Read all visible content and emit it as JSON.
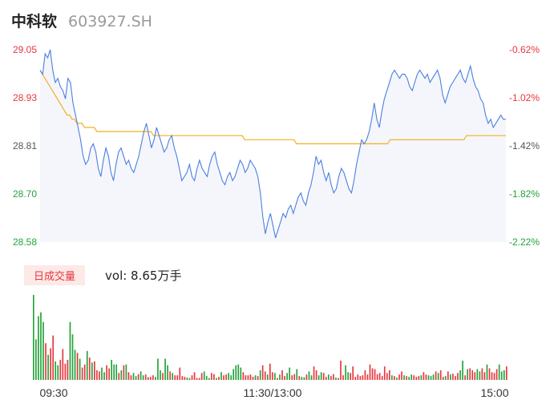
{
  "header": {
    "name": "中科软",
    "code": "603927.SH"
  },
  "volume": {
    "label": "日成交量",
    "text": "vol: 8.65万手"
  },
  "colors": {
    "price": "#4d7fe0",
    "avg": "#f2b01e",
    "up": "#e8363d",
    "down": "#23a33a",
    "area": "#f4f6fb"
  },
  "chart_data": [
    {
      "type": "line",
      "title": "",
      "y_left_ticks": [
        "29.05",
        "28.93",
        "28.81",
        "28.70",
        "28.58"
      ],
      "y_right_ticks": [
        "-0.62%",
        "-1.02%",
        "-1.42%",
        "-1.82%",
        "-2.22%"
      ],
      "ylim": [
        28.58,
        29.05
      ],
      "x_labels": [
        "09:30",
        "11:30/13:00",
        "15:00"
      ],
      "series": [
        {
          "values": [
            29.0,
            28.99,
            29.04,
            29.03,
            29.05,
            29.0,
            28.97,
            28.98,
            28.96,
            28.95,
            28.93,
            28.98,
            28.97,
            28.92,
            28.89,
            28.86,
            28.83,
            28.79,
            28.77,
            28.78,
            28.81,
            28.82,
            28.8,
            28.76,
            28.74,
            28.78,
            28.81,
            28.79,
            28.75,
            28.73,
            28.77,
            28.8,
            28.81,
            28.79,
            28.77,
            28.78,
            28.76,
            28.75,
            28.77,
            28.79,
            28.82,
            28.85,
            28.87,
            28.84,
            28.81,
            28.83,
            28.86,
            28.84,
            28.82,
            28.8,
            28.81,
            28.83,
            28.84,
            28.81,
            28.79,
            28.76,
            28.73,
            28.74,
            28.75,
            28.77,
            28.74,
            28.73,
            28.76,
            28.78,
            28.76,
            28.75,
            28.74,
            28.77,
            28.79,
            28.8,
            28.77,
            28.75,
            28.73,
            28.72,
            28.74,
            28.75,
            28.73,
            28.74,
            28.76,
            28.78,
            28.77,
            28.75,
            28.76,
            28.78,
            28.77,
            28.76,
            28.74,
            28.7,
            28.64,
            28.6,
            28.63,
            28.65,
            28.62,
            28.59,
            28.61,
            28.63,
            28.65,
            28.64,
            28.66,
            28.67,
            28.65,
            28.67,
            28.69,
            28.7,
            28.68,
            28.67,
            28.7,
            28.72,
            28.75,
            28.79,
            28.77,
            28.78,
            28.75,
            28.73,
            28.75,
            28.72,
            28.7,
            28.71,
            28.74,
            28.76,
            28.75,
            28.73,
            28.71,
            28.7,
            28.73,
            28.77,
            28.8,
            28.83,
            28.82,
            28.83,
            28.85,
            28.88,
            28.92,
            28.88,
            28.86,
            28.9,
            28.93,
            28.95,
            28.97,
            28.99,
            29.0,
            28.99,
            28.98,
            28.99,
            28.99,
            28.98,
            28.96,
            28.95,
            28.97,
            28.99,
            29.0,
            28.99,
            28.98,
            28.99,
            28.97,
            28.98,
            28.99,
            29.0,
            28.98,
            28.94,
            28.92,
            28.94,
            28.96,
            28.97,
            28.98,
            28.99,
            29.0,
            28.98,
            28.97,
            28.99,
            29.01,
            28.98,
            28.96,
            28.95,
            28.93,
            28.92,
            28.89,
            28.87,
            28.88,
            28.86,
            28.87,
            28.88,
            28.89,
            28.88,
            28.88
          ]
        },
        {
          "values": [
            29.0,
            28.99,
            28.98,
            28.97,
            28.96,
            28.95,
            28.94,
            28.93,
            28.92,
            28.91,
            28.9,
            28.89,
            28.89,
            28.88,
            28.88,
            28.87,
            28.87,
            28.87,
            28.86,
            28.86,
            28.86,
            28.86,
            28.86,
            28.85,
            28.85,
            28.85,
            28.85,
            28.85,
            28.85,
            28.85,
            28.85,
            28.85,
            28.85,
            28.85,
            28.85,
            28.85,
            28.85,
            28.85,
            28.85,
            28.85,
            28.85,
            28.85,
            28.85,
            28.85,
            28.85,
            28.85,
            28.84,
            28.84,
            28.84,
            28.84,
            28.84,
            28.84,
            28.84,
            28.84,
            28.84,
            28.84,
            28.84,
            28.84,
            28.84,
            28.84,
            28.84,
            28.84,
            28.84,
            28.84,
            28.84,
            28.84,
            28.84,
            28.84,
            28.84,
            28.84,
            28.84,
            28.84,
            28.84,
            28.84,
            28.84,
            28.84,
            28.84,
            28.84,
            28.84,
            28.84,
            28.84,
            28.84,
            28.84,
            28.83,
            28.83,
            28.83,
            28.83,
            28.83,
            28.83,
            28.83,
            28.83,
            28.83,
            28.83,
            28.83,
            28.83,
            28.83,
            28.83,
            28.83,
            28.83,
            28.83,
            28.83,
            28.83,
            28.83,
            28.83,
            28.82,
            28.82,
            28.82,
            28.82,
            28.82,
            28.82,
            28.82,
            28.82,
            28.82,
            28.82,
            28.82,
            28.82,
            28.82,
            28.82,
            28.82,
            28.82,
            28.82,
            28.82,
            28.82,
            28.82,
            28.82,
            28.82,
            28.82,
            28.82,
            28.82,
            28.82,
            28.82,
            28.82,
            28.82,
            28.82,
            28.82,
            28.82,
            28.82,
            28.82,
            28.82,
            28.82,
            28.82,
            28.82,
            28.83,
            28.83,
            28.83,
            28.83,
            28.83,
            28.83,
            28.83,
            28.83,
            28.83,
            28.83,
            28.83,
            28.83,
            28.83,
            28.83,
            28.83,
            28.83,
            28.83,
            28.83,
            28.83,
            28.83,
            28.83,
            28.83,
            28.83,
            28.83,
            28.83,
            28.83,
            28.83,
            28.83,
            28.83,
            28.83,
            28.83,
            28.84,
            28.84,
            28.84,
            28.84,
            28.84,
            28.84,
            28.84,
            28.84,
            28.84,
            28.84,
            28.84,
            28.84,
            28.84,
            28.84,
            28.84,
            28.84,
            28.84
          ]
        }
      ]
    },
    {
      "type": "bar",
      "title": "",
      "values": [
        220,
        105,
        165,
        175,
        150,
        95,
        65,
        82,
        115,
        48,
        38,
        52,
        80,
        42,
        52,
        150,
        118,
        78,
        70,
        55,
        32,
        40,
        75,
        58,
        45,
        48,
        25,
        22,
        32,
        20,
        38,
        30,
        52,
        40,
        40,
        18,
        25,
        38,
        40,
        20,
        12,
        18,
        10,
        15,
        22,
        12,
        14,
        7,
        8,
        12,
        8,
        55,
        25,
        18,
        55,
        38,
        22,
        18,
        12,
        12,
        32,
        10,
        8,
        6,
        5,
        12,
        20,
        5,
        5,
        18,
        22,
        10,
        5,
        18,
        15,
        5,
        8,
        20,
        12,
        14,
        18,
        12,
        28,
        38,
        40,
        32,
        20,
        12,
        12,
        14,
        8,
        12,
        10,
        25,
        38,
        22,
        14,
        42,
        20,
        18,
        5,
        14,
        25,
        10,
        18,
        32,
        12,
        15,
        28,
        10,
        8,
        7,
        14,
        22,
        12,
        35,
        25,
        12,
        20,
        18,
        8,
        14,
        10,
        15,
        6,
        5,
        50,
        12,
        38,
        20,
        18,
        35,
        8,
        14,
        10,
        12,
        25,
        14,
        40,
        30,
        28,
        15,
        18,
        10,
        35,
        18,
        25,
        12,
        10,
        6,
        14,
        22,
        12,
        10,
        8,
        14,
        12,
        8,
        10,
        12,
        20,
        14,
        12,
        10,
        14,
        22,
        18,
        25,
        8,
        10,
        22,
        14,
        16,
        10,
        18,
        25,
        50,
        12,
        28,
        30,
        25,
        20,
        28,
        22,
        30,
        20,
        40,
        30,
        20,
        18,
        28,
        40,
        22,
        25,
        35
      ],
      "up": [
        0,
        0,
        0,
        0,
        0,
        1,
        0,
        1,
        1,
        0,
        0,
        1,
        1,
        1,
        1,
        0,
        0,
        0,
        1,
        0,
        1,
        1,
        0,
        1,
        0,
        1,
        1,
        1,
        0,
        0,
        1,
        1,
        0,
        0,
        0,
        1,
        0,
        1,
        0,
        1,
        1,
        0,
        0,
        1,
        0,
        0,
        1,
        1,
        1,
        1,
        0,
        0,
        0,
        1,
        0,
        0,
        1,
        0,
        1,
        1,
        1,
        1,
        1,
        0,
        0,
        1,
        1,
        1,
        1,
        1,
        0,
        0,
        0,
        1,
        1,
        0,
        1,
        0,
        1,
        1,
        0,
        0,
        0,
        0,
        0,
        0,
        1,
        1,
        1,
        1,
        1,
        0,
        1,
        0,
        1,
        1,
        0,
        1,
        1,
        0,
        1,
        0,
        1,
        1,
        0,
        0,
        1,
        1,
        0,
        1,
        0,
        0,
        1,
        0,
        0,
        1,
        1,
        0,
        0,
        1,
        1,
        0,
        1,
        1,
        0,
        1,
        1,
        1,
        0,
        0,
        1,
        1,
        1,
        1,
        1,
        1,
        1,
        1,
        1,
        1,
        1,
        1,
        1,
        1,
        1,
        1,
        1,
        0,
        1,
        0,
        1,
        1,
        0,
        1,
        0,
        0,
        1,
        1,
        1,
        0,
        1,
        1,
        0,
        0,
        0,
        1,
        0,
        1,
        1,
        0,
        1,
        0,
        1,
        1,
        1,
        0,
        0,
        1,
        0,
        1,
        1,
        1,
        0,
        0,
        1,
        1,
        0,
        1,
        1,
        1,
        1,
        0,
        0,
        0,
        1
      ]
    }
  ]
}
